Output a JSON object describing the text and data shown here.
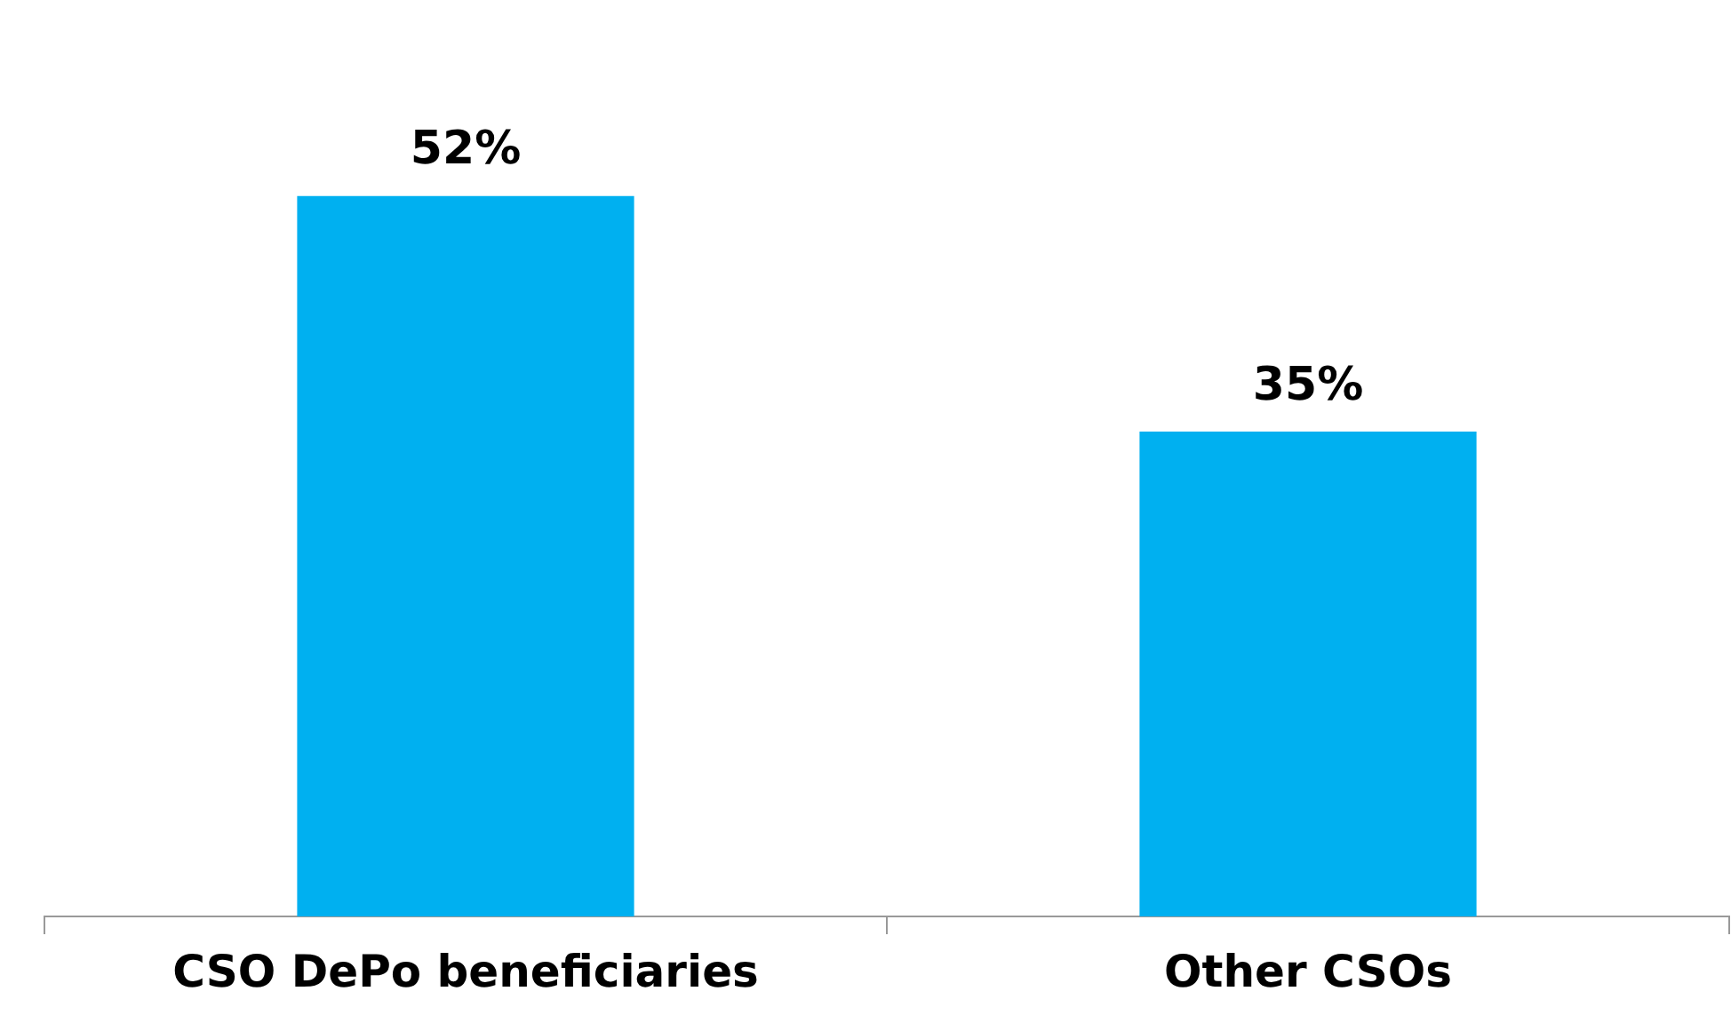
{
  "chart_data": {
    "type": "bar",
    "categories": [
      "CSO DePo beneficiaries",
      "Other CSOs"
    ],
    "values": [
      52,
      35
    ],
    "value_labels": [
      "52%",
      "35%"
    ],
    "color": "#00b0f0",
    "grid": false,
    "legend": false
  }
}
